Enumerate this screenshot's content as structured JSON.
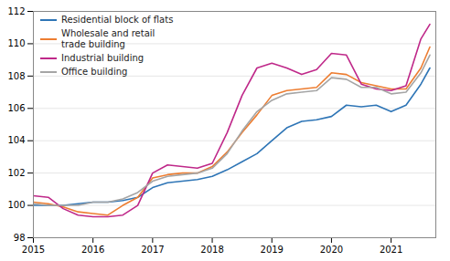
{
  "chart_data": {
    "type": "line",
    "x": [
      2015.0,
      2015.25,
      2015.5,
      2015.75,
      2016.0,
      2016.25,
      2016.5,
      2016.75,
      2017.0,
      2017.25,
      2017.5,
      2017.75,
      2018.0,
      2018.25,
      2018.5,
      2018.75,
      2019.0,
      2019.25,
      2019.5,
      2019.75,
      2020.0,
      2020.25,
      2020.5,
      2020.75,
      2021.0,
      2021.25,
      2021.5,
      2021.65
    ],
    "series": [
      {
        "name": "Residential block of flats",
        "color": "#2e75b6",
        "values": [
          100.0,
          100.0,
          100.0,
          100.1,
          100.2,
          100.2,
          100.3,
          100.5,
          101.1,
          101.4,
          101.5,
          101.6,
          101.8,
          102.2,
          102.7,
          103.2,
          104.0,
          104.8,
          105.2,
          105.3,
          105.5,
          106.2,
          106.1,
          106.2,
          105.8,
          106.2,
          107.5,
          108.5
        ]
      },
      {
        "name": "Wholesale and retail\ntrade building",
        "color": "#ed7d31",
        "values": [
          100.2,
          100.1,
          99.9,
          99.6,
          99.5,
          99.4,
          100.0,
          100.5,
          101.7,
          101.9,
          102.0,
          102.0,
          102.4,
          103.3,
          104.5,
          105.6,
          106.8,
          107.1,
          107.2,
          107.3,
          108.2,
          108.1,
          107.6,
          107.4,
          107.2,
          107.2,
          108.5,
          109.8
        ]
      },
      {
        "name": "Industrial building",
        "color": "#bf2889",
        "values": [
          100.6,
          100.5,
          99.8,
          99.4,
          99.3,
          99.3,
          99.4,
          100.0,
          102.0,
          102.5,
          102.4,
          102.3,
          102.6,
          104.5,
          106.8,
          108.5,
          108.8,
          108.5,
          108.1,
          108.4,
          109.4,
          109.3,
          107.5,
          107.2,
          107.1,
          107.4,
          110.3,
          111.2
        ]
      },
      {
        "name": "Office building",
        "color": "#a5a5a5",
        "values": [
          100.1,
          100.0,
          100.0,
          100.0,
          100.2,
          100.2,
          100.4,
          100.8,
          101.5,
          101.8,
          101.9,
          102.0,
          102.3,
          103.2,
          104.6,
          105.8,
          106.5,
          106.9,
          107.0,
          107.1,
          107.9,
          107.8,
          107.3,
          107.3,
          106.9,
          107.0,
          108.2,
          109.3
        ]
      }
    ],
    "xlim": [
      2015.0,
      2021.75
    ],
    "xticks": [
      2015,
      2016,
      2017,
      2018,
      2019,
      2020,
      2021
    ],
    "ylim": [
      98,
      112
    ],
    "yticks": [
      98,
      100,
      102,
      104,
      106,
      108,
      110,
      112
    ],
    "grid": true,
    "legend": "upper left"
  }
}
